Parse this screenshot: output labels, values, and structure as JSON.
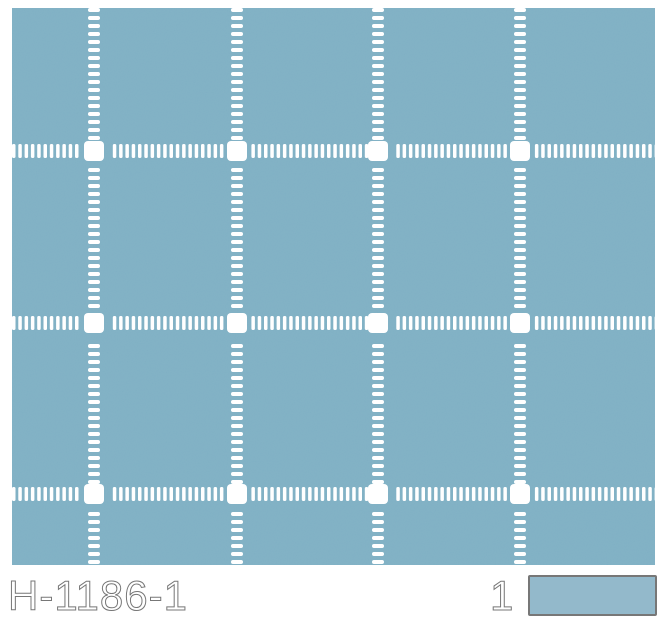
{
  "pattern": {
    "name": "windowpane-grid-fabric",
    "base_color": "#7fb0c4",
    "line_color": "#ffffff"
  },
  "label": {
    "code": "H-1186-1",
    "colorway_number": "1"
  },
  "swatch": {
    "color": "#93b9cb"
  }
}
